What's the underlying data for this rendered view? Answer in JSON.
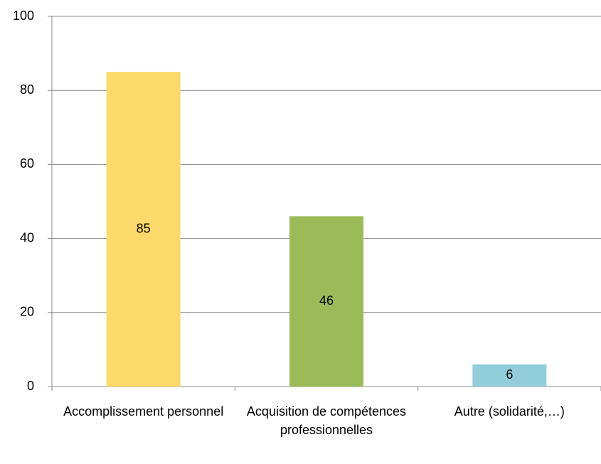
{
  "chart_data": {
    "type": "bar",
    "categories": [
      "Accomplissement personnel",
      "Acquisition de compétences professionnelles",
      "Autre (solidarité,…)"
    ],
    "values": [
      85,
      46,
      6
    ],
    "colors": [
      "#fcd96a",
      "#9bbb59",
      "#92cddc"
    ],
    "ylim": [
      0,
      100
    ],
    "yticks": [
      0,
      20,
      40,
      60,
      80,
      100
    ],
    "grid": true
  }
}
